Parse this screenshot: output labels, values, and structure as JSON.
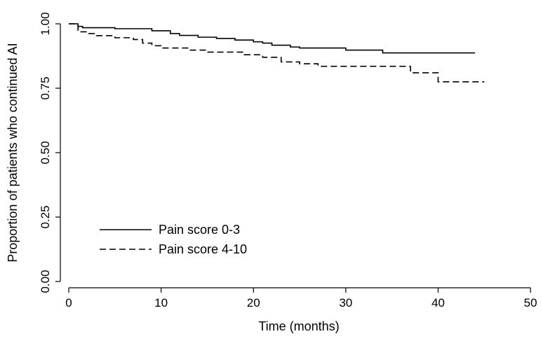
{
  "chart_data": {
    "type": "line",
    "subtype": "step (Kaplan-Meier)",
    "title": "",
    "xlabel": "Time (months)",
    "ylabel": "Proportion of patients who continued AI",
    "xlim": [
      0,
      50
    ],
    "ylim": [
      0,
      1
    ],
    "x_ticks": [
      0,
      10,
      20,
      30,
      40,
      50
    ],
    "x_tick_labels": [
      "0",
      "10",
      "20",
      "30",
      "40",
      "50"
    ],
    "y_ticks": [
      0,
      0.25,
      0.5,
      0.75,
      1
    ],
    "y_tick_labels": [
      "0.00",
      "0.25",
      "0.50",
      "0.75",
      "1.00"
    ],
    "grid": false,
    "legend_position": "bottom-left",
    "series": [
      {
        "name": "Pain score 0-3",
        "line_style": "solid",
        "color": "#000000",
        "points": [
          [
            0,
            1.0
          ],
          [
            1,
            0.99
          ],
          [
            1.5,
            0.985
          ],
          [
            5,
            0.981
          ],
          [
            9,
            0.973
          ],
          [
            11,
            0.962
          ],
          [
            12,
            0.955
          ],
          [
            14,
            0.948
          ],
          [
            16,
            0.943
          ],
          [
            18,
            0.937
          ],
          [
            20,
            0.93
          ],
          [
            21,
            0.925
          ],
          [
            22,
            0.917
          ],
          [
            24,
            0.91
          ],
          [
            25,
            0.906
          ],
          [
            30,
            0.898
          ],
          [
            34,
            0.887
          ],
          [
            44,
            0.887
          ]
        ]
      },
      {
        "name": "Pain score 4-10",
        "line_style": "dashed",
        "color": "#000000",
        "points": [
          [
            0,
            1.0
          ],
          [
            1,
            0.969
          ],
          [
            2,
            0.962
          ],
          [
            3,
            0.954
          ],
          [
            5,
            0.946
          ],
          [
            7,
            0.939
          ],
          [
            8,
            0.925
          ],
          [
            9,
            0.915
          ],
          [
            10,
            0.906
          ],
          [
            13,
            0.898
          ],
          [
            15,
            0.89
          ],
          [
            19,
            0.88
          ],
          [
            21,
            0.87
          ],
          [
            23,
            0.852
          ],
          [
            25,
            0.845
          ],
          [
            27,
            0.835
          ],
          [
            37,
            0.81
          ],
          [
            40,
            0.775
          ],
          [
            45,
            0.775
          ]
        ]
      }
    ]
  }
}
